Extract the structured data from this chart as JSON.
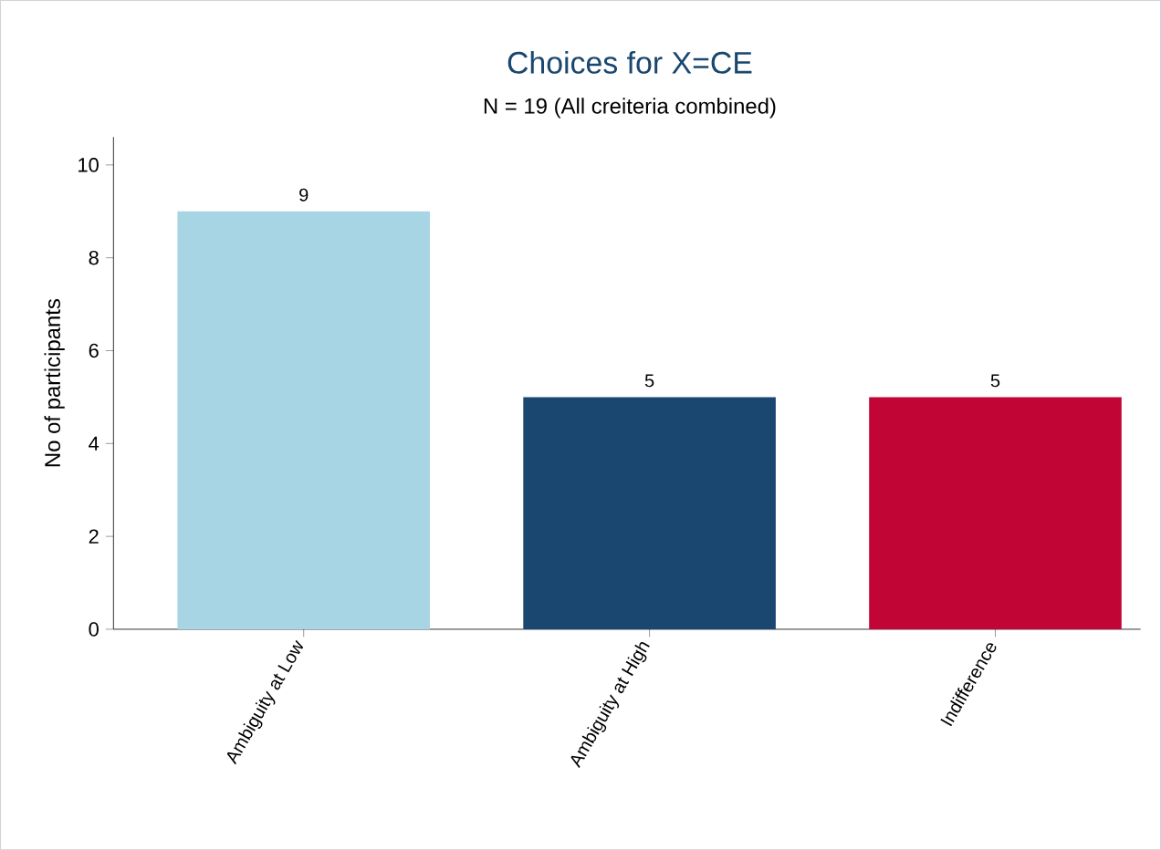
{
  "chart_data": {
    "type": "bar",
    "title": "Choices for X=CE",
    "subtitle": "N = 19 (All creiteria combined)",
    "ylabel": "No of participants",
    "categories": [
      "Ambiguity at Low",
      "Ambiguity at High",
      "Indifference"
    ],
    "values": [
      9,
      5,
      5
    ],
    "colors": [
      "#a8d5e3",
      "#1a476f",
      "#c10534"
    ],
    "ylim": [
      0,
      10.6
    ],
    "yticks": [
      0,
      2,
      4,
      6,
      8,
      10
    ],
    "data_labels": true,
    "grid": false
  }
}
